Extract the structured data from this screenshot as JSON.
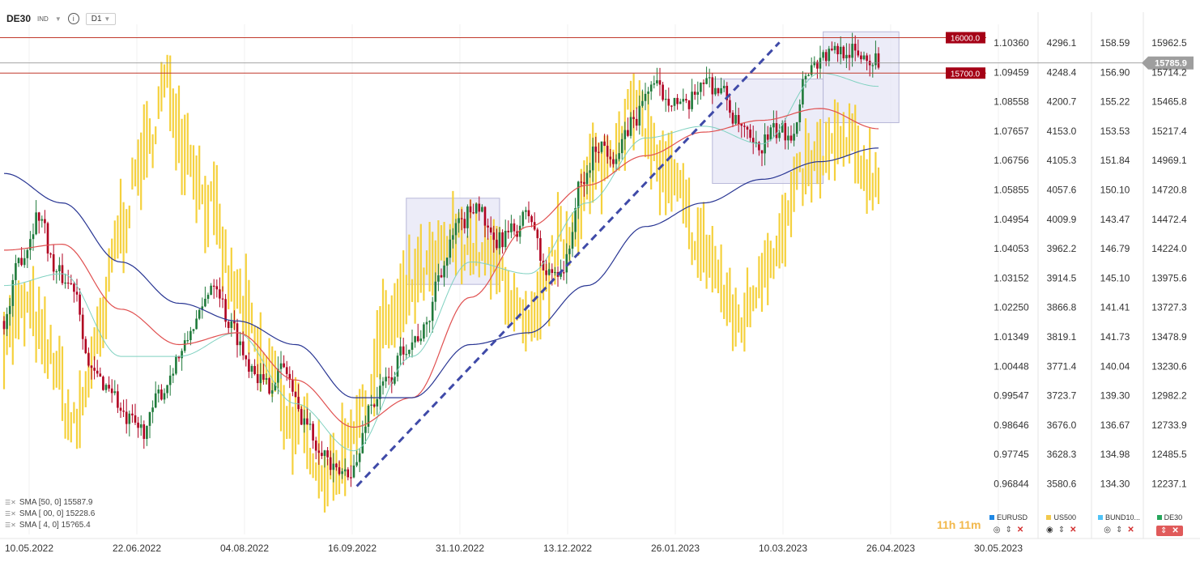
{
  "toolbar": {
    "symbol": "DE30",
    "badge": "IND",
    "timeframe": "D1"
  },
  "price_labels": {
    "current": "15785.9",
    "level_high": "16000.0",
    "level_low": "15700.0"
  },
  "legend": [
    {
      "text": "SMA [50, 0] 15587.9"
    },
    {
      "text": "SMA [ 00, 0] 15228.6"
    },
    {
      "text": "SMA [ 4, 0] 15?65.4"
    }
  ],
  "countdown": "11h 11m",
  "instruments": [
    {
      "name": "EURUSD",
      "color": "#1e88e5"
    },
    {
      "name": "US500",
      "color": "#f2c94c"
    },
    {
      "name": "BUND10...",
      "color": "#4fc3f7"
    },
    {
      "name": "DE30",
      "color": "#26a65b"
    }
  ],
  "colors": {
    "bull": "#1f7a3a",
    "bear": "#b00020",
    "us500": "#f5d13d",
    "sma_fast": "#7fd1c0",
    "sma_mid": "#e05050",
    "sma_slow": "#283593",
    "level_line": "#c0392b",
    "trend": "#3f4aa8",
    "box_fill": "#e6e6f5"
  },
  "chart_data": {
    "type": "candlestick",
    "x_ticks": [
      "10.05.2022",
      "22.06.2022",
      "04.08.2022",
      "16.09.2022",
      "31.10.2022",
      "13.12.2022",
      "26.01.2023",
      "10.03.2023",
      "26.04.2023",
      "30.05.2023"
    ],
    "y_axes": [
      {
        "series": "EURUSD",
        "ticks": [
          "1.10360",
          "1.09459",
          "1.08558",
          "1.07657",
          "1.06756",
          "1.05855",
          "1.04954",
          "1.04053",
          "1.03152",
          "1.02250",
          "1.01349",
          "1.00448",
          "0.99547",
          "0.98646",
          "0.97745",
          "0.96844"
        ]
      },
      {
        "series": "US500",
        "ticks": [
          "4296.1",
          "4248.4",
          "4200.7",
          "4153.0",
          "4105.3",
          "4057.6",
          "4009.9",
          "3962.2",
          "3914.5",
          "3866.8",
          "3819.1",
          "3771.4",
          "3723.7",
          "3676.0",
          "3628.3",
          "3580.6"
        ]
      },
      {
        "series": "BUND10",
        "ticks": [
          "158.59",
          "156.90",
          "155.22",
          "153.53",
          "151.84",
          "150.10",
          "143.47",
          "146.79",
          "145.10",
          "141.41",
          "141.73",
          "140.04",
          "139.30",
          "136.67",
          "134.98",
          "134.30"
        ]
      },
      {
        "series": "DE30",
        "ticks": [
          "15962.5",
          "15714.2",
          "15465.8",
          "15217.4",
          "14969.1",
          "14720.8",
          "14472.4",
          "14224.0",
          "13975.6",
          "13727.3",
          "13478.9",
          "13230.6",
          "12982.2",
          "12733.9",
          "12485.5",
          "12237.1"
        ]
      }
    ],
    "levels": [
      16000.0,
      15700.0
    ],
    "current_price": 15785.9,
    "ylim": [
      12100,
      16000
    ],
    "series": [
      {
        "name": "DE30",
        "anchors": [
          [
            0,
            13600
          ],
          [
            6,
            14150
          ],
          [
            12,
            14500
          ],
          [
            18,
            14000
          ],
          [
            24,
            13900
          ],
          [
            30,
            13150
          ],
          [
            36,
            13050
          ],
          [
            42,
            12750
          ],
          [
            48,
            12680
          ],
          [
            54,
            13000
          ],
          [
            60,
            13300
          ],
          [
            66,
            13600
          ],
          [
            72,
            13950
          ],
          [
            78,
            13550
          ],
          [
            84,
            13250
          ],
          [
            90,
            13050
          ],
          [
            96,
            13200
          ],
          [
            102,
            12800
          ],
          [
            108,
            12550
          ],
          [
            114,
            12300
          ],
          [
            120,
            12350
          ],
          [
            126,
            12900
          ],
          [
            132,
            13100
          ],
          [
            138,
            13400
          ],
          [
            144,
            13500
          ],
          [
            150,
            14050
          ],
          [
            156,
            14400
          ],
          [
            162,
            14600
          ],
          [
            168,
            14250
          ],
          [
            174,
            14350
          ],
          [
            180,
            14500
          ],
          [
            186,
            14000
          ],
          [
            192,
            14050
          ],
          [
            198,
            14750
          ],
          [
            204,
            15100
          ],
          [
            210,
            15000
          ],
          [
            216,
            15300
          ],
          [
            222,
            15600
          ],
          [
            228,
            15500
          ],
          [
            234,
            15400
          ],
          [
            240,
            15650
          ],
          [
            246,
            15550
          ],
          [
            252,
            15250
          ],
          [
            258,
            15050
          ],
          [
            264,
            15200
          ],
          [
            270,
            15200
          ],
          [
            276,
            15750
          ],
          [
            282,
            15850
          ],
          [
            288,
            15900
          ],
          [
            294,
            15850
          ],
          [
            300,
            15800
          ]
        ]
      },
      {
        "name": "US500",
        "anchors": [
          [
            0,
            13500
          ],
          [
            8,
            13700
          ],
          [
            16,
            13300
          ],
          [
            24,
            12700
          ],
          [
            32,
            13400
          ],
          [
            40,
            14400
          ],
          [
            48,
            15000
          ],
          [
            56,
            15600
          ],
          [
            62,
            15100
          ],
          [
            70,
            14600
          ],
          [
            80,
            13800
          ],
          [
            90,
            13200
          ],
          [
            100,
            12700
          ],
          [
            112,
            12300
          ],
          [
            122,
            12800
          ],
          [
            132,
            13600
          ],
          [
            144,
            14000
          ],
          [
            156,
            14300
          ],
          [
            168,
            14100
          ],
          [
            180,
            13500
          ],
          [
            192,
            14300
          ],
          [
            204,
            14900
          ],
          [
            216,
            15400
          ],
          [
            228,
            14800
          ],
          [
            240,
            14200
          ],
          [
            252,
            13600
          ],
          [
            264,
            14200
          ],
          [
            276,
            14900
          ],
          [
            288,
            15100
          ],
          [
            300,
            14800
          ]
        ]
      },
      {
        "name": "SMA [50, 0]",
        "anchors": [
          [
            0,
            13900
          ],
          [
            20,
            14000
          ],
          [
            40,
            13300
          ],
          [
            60,
            13300
          ],
          [
            80,
            13500
          ],
          [
            100,
            12900
          ],
          [
            120,
            12500
          ],
          [
            140,
            13300
          ],
          [
            160,
            14100
          ],
          [
            180,
            14000
          ],
          [
            200,
            14600
          ],
          [
            220,
            15150
          ],
          [
            240,
            15250
          ],
          [
            260,
            15100
          ],
          [
            280,
            15700
          ],
          [
            300,
            15587.9
          ]
        ]
      },
      {
        "name": "SMA [ 00, 0]",
        "anchors": [
          [
            0,
            14200
          ],
          [
            20,
            14250
          ],
          [
            40,
            13700
          ],
          [
            60,
            13400
          ],
          [
            80,
            13500
          ],
          [
            100,
            13100
          ],
          [
            120,
            12700
          ],
          [
            140,
            12950
          ],
          [
            160,
            13800
          ],
          [
            180,
            14400
          ],
          [
            200,
            14750
          ],
          [
            220,
            15000
          ],
          [
            240,
            15200
          ],
          [
            260,
            15300
          ],
          [
            280,
            15400
          ],
          [
            300,
            15228.6
          ]
        ]
      },
      {
        "name": "SMA [ 4, 0]",
        "anchors": [
          [
            0,
            14850
          ],
          [
            20,
            14600
          ],
          [
            40,
            14100
          ],
          [
            60,
            13750
          ],
          [
            80,
            13600
          ],
          [
            100,
            13400
          ],
          [
            120,
            12950
          ],
          [
            140,
            12950
          ],
          [
            160,
            13400
          ],
          [
            180,
            13500
          ],
          [
            200,
            13900
          ],
          [
            220,
            14400
          ],
          [
            240,
            14600
          ],
          [
            260,
            14800
          ],
          [
            280,
            14950
          ],
          [
            300,
            15065.4
          ]
        ]
      }
    ],
    "trendline": [
      [
        121,
        12200
      ],
      [
        266,
        15960
      ]
    ]
  }
}
